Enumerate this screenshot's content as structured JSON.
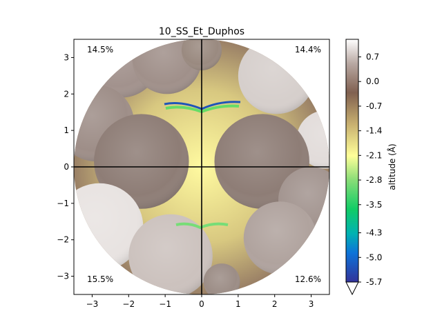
{
  "chart_data": {
    "type": "heatmap",
    "title": "10_SS_Et_Duphos",
    "xlabel": "",
    "ylabel": "",
    "xlim": [
      -3.5,
      3.5
    ],
    "ylim": [
      -3.5,
      3.5
    ],
    "xticks": [
      "−3",
      "−2",
      "−1",
      "0",
      "1",
      "2",
      "3"
    ],
    "yticks": [
      "3",
      "2",
      "1",
      "0",
      "−1",
      "−2",
      "−3"
    ],
    "quadrant_labels": {
      "top_left": "14.5%",
      "top_right": "14.4%",
      "bottom_left": "15.5%",
      "bottom_right": "12.6%"
    },
    "colorbar": {
      "label": "altitude (Å)",
      "ticks": [
        "0.7",
        "0.0",
        "-0.7",
        "-1.4",
        "-2.1",
        "-2.8",
        "-3.5",
        "-4.3",
        "-5.0",
        "-5.7"
      ],
      "range": [
        -5.7,
        1.2
      ],
      "colormap": "terrain",
      "extend": "min"
    },
    "sphere_radius": 3.5,
    "atoms": [
      {
        "x": -2.2,
        "y": 2.95,
        "r": 1.05,
        "color": "#a2928d"
      },
      {
        "x": -0.95,
        "y": 2.95,
        "r": 0.95,
        "color": "#a0908a"
      },
      {
        "x": 0.0,
        "y": 3.2,
        "r": 0.55,
        "color": "#9a8a80"
      },
      {
        "x": 2.05,
        "y": 2.5,
        "r": 1.05,
        "color": "#d6cfcc"
      },
      {
        "x": 3.4,
        "y": 0.75,
        "r": 0.8,
        "color": "#e2dcda"
      },
      {
        "x": -2.9,
        "y": 1.2,
        "r": 1.05,
        "color": "#9e8e88"
      },
      {
        "x": -1.65,
        "y": 0.15,
        "r": 1.3,
        "color": "#8e7d76"
      },
      {
        "x": 1.65,
        "y": 0.15,
        "r": 1.3,
        "color": "#8e7d76"
      },
      {
        "x": 3.0,
        "y": -0.9,
        "r": 0.9,
        "color": "#a39590"
      },
      {
        "x": 2.15,
        "y": -1.95,
        "r": 1.0,
        "color": "#b0a39e"
      },
      {
        "x": -2.8,
        "y": -1.65,
        "r": 1.2,
        "color": "#e8e3e1"
      },
      {
        "x": -0.85,
        "y": -2.45,
        "r": 1.15,
        "color": "#ccc2be"
      },
      {
        "x": 0.55,
        "y": -3.15,
        "r": 0.5,
        "color": "#9c8d86"
      }
    ]
  }
}
